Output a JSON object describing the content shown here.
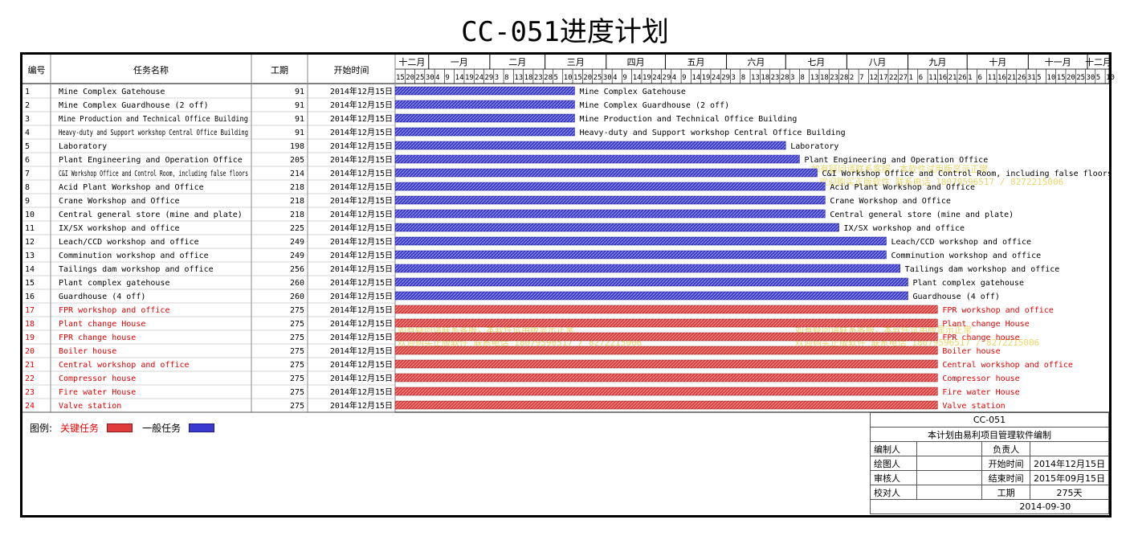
{
  "title": "CC-051进度计划",
  "headers": {
    "no": "编号",
    "name": "任务名称",
    "duration": "工期",
    "start": "开始时间"
  },
  "colors": {
    "critical": "#e03c3c",
    "normal": "#3a3ad0",
    "critical_text": "#e00000",
    "watermark": "#e6d25a"
  },
  "months": [
    "十二月",
    "一月",
    "二月",
    "三月",
    "四月",
    "五月",
    "六月",
    "七月",
    "八月",
    "九月",
    "十月",
    "十一月",
    "十二月"
  ],
  "day_ticks": [
    [
      "15",
      "20",
      "25",
      "30"
    ],
    [
      "4",
      "9",
      "14",
      "19",
      "24",
      "29"
    ],
    [
      "3",
      "8",
      "13",
      "18",
      "23",
      "28"
    ],
    [
      "5",
      "10",
      "15",
      "20",
      "25",
      "30"
    ],
    [
      "4",
      "9",
      "14",
      "19",
      "24",
      "29"
    ],
    [
      "4",
      "9",
      "14",
      "19",
      "24",
      "29"
    ],
    [
      "3",
      "8",
      "13",
      "18",
      "23",
      "28"
    ],
    [
      "3",
      "8",
      "13",
      "18",
      "23",
      "28"
    ],
    [
      "2",
      "7",
      "12",
      "17",
      "22",
      "27"
    ],
    [
      "1",
      "6",
      "11",
      "16",
      "21",
      "26"
    ],
    [
      "1",
      "6",
      "11",
      "16",
      "21",
      "26",
      "31"
    ],
    [
      "5",
      "10",
      "15",
      "20",
      "25",
      "30"
    ],
    [
      "5",
      "10"
    ]
  ],
  "watermark_lines": [
    "如有疑问请联系客服，本软件试用版显示正常",
    "欢迎购买正版软件 联系电话 18079596517 / 8272215006"
  ],
  "legend": {
    "label": "图例:",
    "critical": "关键任务",
    "normal": "一般任务"
  },
  "info": {
    "code": "CC-051",
    "made_by": "本计划由易利项目管理软件编制",
    "editor_label": "编制人",
    "editor": "",
    "owner_label": "负责人",
    "owner": "",
    "drawer_label": "绘图人",
    "drawer": "",
    "start_label": "开始时间",
    "start": "2014年12月15日",
    "reviewer_label": "审核人",
    "reviewer": "",
    "end_label": "结束时间",
    "end": "2015年09月15日",
    "checker_label": "校对人",
    "checker": "",
    "duration_label": "工期",
    "duration": "275天",
    "date": "2014-09-30"
  },
  "chart_data": {
    "type": "gantt",
    "title": "CC-051进度计划",
    "axis_start": "2014-12-15",
    "axis_end": "2015-12-12",
    "tasks": [
      {
        "id": "1",
        "name": "Mine Complex Gatehouse",
        "duration": 91,
        "start": "2014年12月15日",
        "critical": false
      },
      {
        "id": "2",
        "name": "Mine Complex Guardhouse (2 off)",
        "duration": 91,
        "start": "2014年12月15日",
        "critical": false
      },
      {
        "id": "3",
        "name": "Mine Production and Technical Office Building",
        "duration": 91,
        "start": "2014年12月15日",
        "critical": false
      },
      {
        "id": "4",
        "name": "Heavy-duty and Support workshop Central Office Building",
        "duration": 91,
        "start": "2014年12月15日",
        "critical": false
      },
      {
        "id": "5",
        "name": "Laboratory",
        "duration": 198,
        "start": "2014年12月15日",
        "critical": false
      },
      {
        "id": "6",
        "name": "Plant Engineering and Operation Office",
        "duration": 205,
        "start": "2014年12月15日",
        "critical": false
      },
      {
        "id": "7",
        "name": "C&I Workshop Office and Control Room, including  false floors",
        "duration": 214,
        "start": "2014年12月15日",
        "critical": false
      },
      {
        "id": "8",
        "name": "Acid Plant Workshop and Office",
        "duration": 218,
        "start": "2014年12月15日",
        "critical": false
      },
      {
        "id": "9",
        "name": "Crane Workshop and Office",
        "duration": 218,
        "start": "2014年12月15日",
        "critical": false
      },
      {
        "id": "10",
        "name": "Central general store (mine and plate)",
        "duration": 218,
        "start": "2014年12月15日",
        "critical": false
      },
      {
        "id": "11",
        "name": "IX/SX workshop and office",
        "duration": 225,
        "start": "2014年12月15日",
        "critical": false
      },
      {
        "id": "12",
        "name": "Leach/CCD workshop and office",
        "duration": 249,
        "start": "2014年12月15日",
        "critical": false
      },
      {
        "id": "13",
        "name": "Comminution workshop and office",
        "duration": 249,
        "start": "2014年12月15日",
        "critical": false
      },
      {
        "id": "14",
        "name": "Tailings dam workshop and office",
        "duration": 256,
        "start": "2014年12月15日",
        "critical": false
      },
      {
        "id": "15",
        "name": "Plant complex gatehouse",
        "duration": 260,
        "start": "2014年12月15日",
        "critical": false
      },
      {
        "id": "16",
        "name": "Guardhouse (4 off)",
        "duration": 260,
        "start": "2014年12月15日",
        "critical": false
      },
      {
        "id": "17",
        "name": "FPR workshop and office",
        "duration": 275,
        "start": "2014年12月15日",
        "critical": true
      },
      {
        "id": "18",
        "name": "Plant change House",
        "duration": 275,
        "start": "2014年12月15日",
        "critical": true
      },
      {
        "id": "19",
        "name": "FPR change house",
        "duration": 275,
        "start": "2014年12月15日",
        "critical": true
      },
      {
        "id": "20",
        "name": "Boiler house",
        "duration": 275,
        "start": "2014年12月15日",
        "critical": true
      },
      {
        "id": "21",
        "name": "Central workshop and office",
        "duration": 275,
        "start": "2014年12月15日",
        "critical": true
      },
      {
        "id": "22",
        "name": "Compressor house",
        "duration": 275,
        "start": "2014年12月15日",
        "critical": true
      },
      {
        "id": "23",
        "name": "Fire water House",
        "duration": 275,
        "start": "2014年12月15日",
        "critical": true
      },
      {
        "id": "24",
        "name": "Valve station",
        "duration": 275,
        "start": "2014年12月15日",
        "critical": true
      }
    ]
  }
}
